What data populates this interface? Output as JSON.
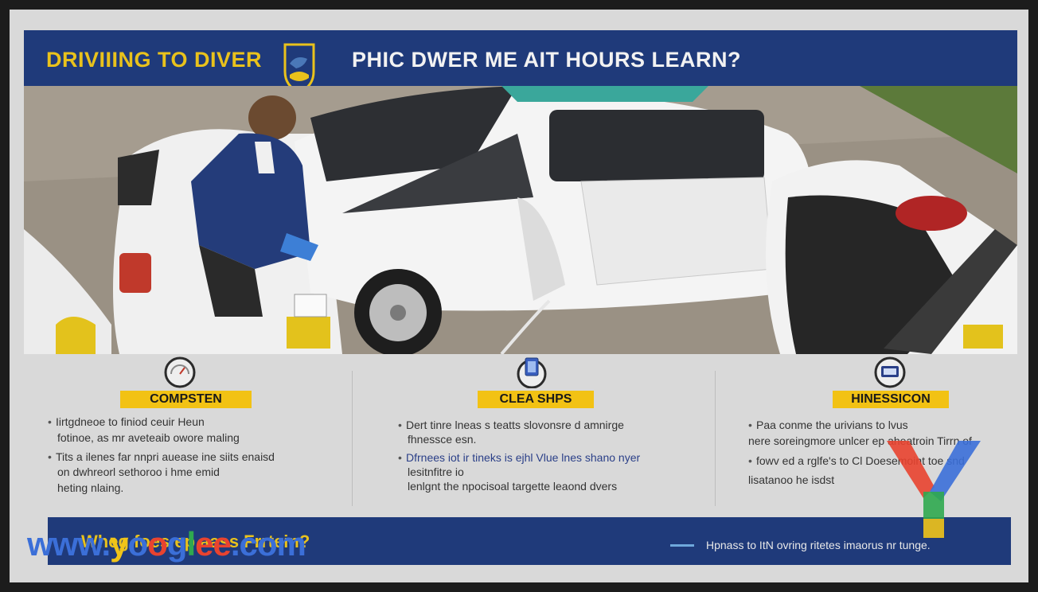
{
  "banner": {
    "title_left": "DRIVIIING TO DIVER",
    "title_right": "PHIC DWER ME AIT HOURS LEARN?"
  },
  "columns": [
    {
      "label": "COMPSTEN",
      "bullets": [
        {
          "text": "Iirtgdneoe to finiod ceuir Heun",
          "color": "dark"
        },
        {
          "text": "fotinoe, as mr aveteaib       owore maling",
          "color": "dark",
          "continuation": true
        },
        {
          "text": "Tits a ilenes far nnpri auease ine siits enaisd",
          "color": "dark"
        },
        {
          "text": "on dwhreorl sethoroo i hme emid",
          "color": "dark",
          "continuation": true
        },
        {
          "text": "heting nlaing.",
          "color": "dark",
          "continuation": true
        }
      ]
    },
    {
      "label": "CLEA SHPS",
      "bullets": [
        {
          "text": "Dert tinre lneas s teatts slovonsre d amnirge",
          "color": "dark"
        },
        {
          "text": "fhnessce esn.",
          "color": "dark",
          "continuation": true
        },
        {
          "text": "Dfrnees iot ir tineks is ejhl Vlue lnes shano nyer",
          "color": "blue"
        },
        {
          "text": "lesitnfitre io",
          "color": "dark",
          "continuation": true
        },
        {
          "text": "lenlgnt  the npocisoal targette leaond dvers",
          "color": "dark",
          "continuation": true
        }
      ]
    },
    {
      "label": "HINESSICON",
      "bullets": [
        {
          "text": "Paa conme the urivians to lvus",
          "color": "dark"
        },
        {
          "text": "nere soreingmore unlcer ep aheatroin Tirrn of",
          "color": "dark",
          "continuation": true
        },
        {
          "text": "fowv ed a rglfe's to Cl Doesemoint toe snd",
          "color": "dark"
        },
        {
          "text": "lisatanoo he isdst",
          "color": "dark",
          "continuation": true
        }
      ]
    }
  ],
  "footer": {
    "title": "Wheg foes ep aass Frrtein?",
    "text": "Hpnass to ItN ovring ritetes imaorus nr tunge."
  },
  "watermark": {
    "parts": [
      {
        "text": "www.",
        "color": "#3b6fd8"
      },
      {
        "text": "y",
        "color": "#f0c419"
      },
      {
        "text": "o",
        "color": "#3b6fd8"
      },
      {
        "text": "o",
        "color": "#e8432f"
      },
      {
        "text": "g",
        "color": "#3b6fd8"
      },
      {
        "text": "l",
        "color": "#2fa84f"
      },
      {
        "text": "ee",
        "color": "#e8432f"
      },
      {
        "text": ".com",
        "color": "#3b6fd8"
      }
    ]
  },
  "colors": {
    "navy": "#1f3a7a",
    "yellow": "#f2c214",
    "text_blue": "#2a3f88"
  },
  "icons": [
    "shield-emblem-icon",
    "gauge-icon",
    "battery-icon",
    "display-icon",
    "y-logo-icon"
  ]
}
